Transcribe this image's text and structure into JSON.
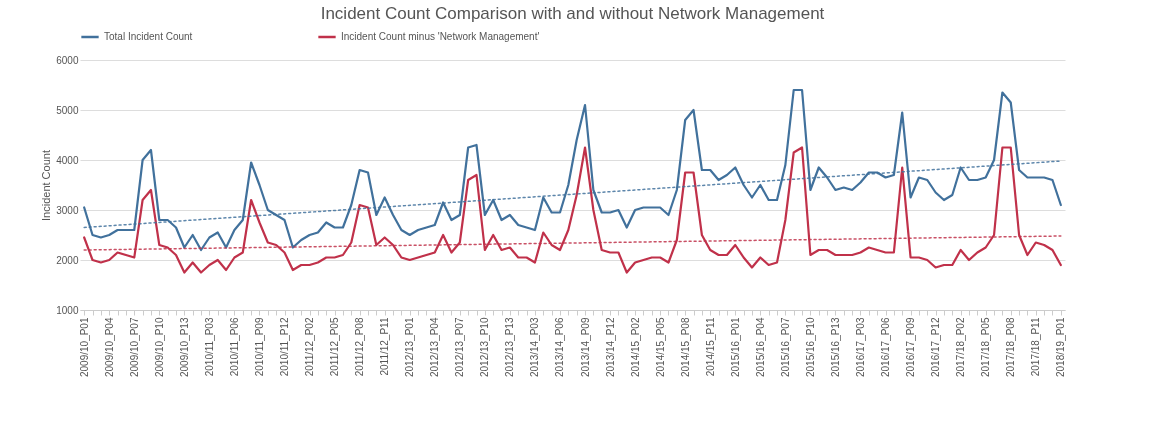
{
  "chart_data": {
    "type": "line",
    "title": "Incident Count Comparison with and without Network Management",
    "ylabel": "Incident Count",
    "categories": [
      "2009/10_P01",
      null,
      null,
      "2009/10_P04",
      null,
      null,
      "2009/10_P07",
      null,
      null,
      "2009/10_P10",
      null,
      null,
      "2009/10_P13",
      null,
      null,
      "2010/11_P03",
      null,
      null,
      "2010/11_P06",
      null,
      null,
      "2010/11_P09",
      null,
      null,
      "2010/11_P12",
      null,
      null,
      "2011/12_P02",
      null,
      null,
      "2011/12_P05",
      null,
      null,
      "2011/12_P08",
      null,
      null,
      "2011/12_P11",
      null,
      null,
      "2012/13_P01",
      null,
      null,
      "2012/13_P04",
      null,
      null,
      "2012/13_P07",
      null,
      null,
      "2012/13_P10",
      null,
      null,
      "2012/13_P13",
      null,
      null,
      "2013/14_P03",
      null,
      null,
      "2013/14_P06",
      null,
      null,
      "2013/14_P09",
      null,
      null,
      "2013/14_P12",
      null,
      null,
      "2014/15_P02",
      null,
      null,
      "2014/15_P05",
      null,
      null,
      "2014/15_P08",
      null,
      null,
      "2014/15_P11",
      null,
      null,
      "2015/16_P01",
      null,
      null,
      "2015/16_P04",
      null,
      null,
      "2015/16_P07",
      null,
      null,
      "2015/16_P10",
      null,
      null,
      "2015/16_P13",
      null,
      null,
      "2016/17_P03",
      null,
      null,
      "2016/17_P06",
      null,
      null,
      "2016/17_P09",
      null,
      null,
      "2016/17_P12",
      null,
      null,
      "2017/18_P02",
      null,
      null,
      "2017/18_P05",
      null,
      null,
      "2017/18_P08",
      null,
      null,
      "2017/18_P11",
      null,
      null,
      "2018/19_P01"
    ],
    "series": [
      {
        "name": "Total Incident Count",
        "color": "#41719c",
        "values": [
          3050,
          2500,
          2450,
          2500,
          2600,
          2600,
          2600,
          4000,
          4200,
          2800,
          2800,
          2650,
          2250,
          2500,
          2200,
          2450,
          2550,
          2250,
          2600,
          2800,
          3950,
          3500,
          3000,
          2900,
          2800,
          2250,
          2400,
          2500,
          2550,
          2750,
          2650,
          2650,
          3100,
          3800,
          3750,
          2900,
          3250,
          2900,
          2600,
          2500,
          2600,
          2650,
          2700,
          3150,
          2800,
          2900,
          4250,
          4300,
          2900,
          3200,
          2800,
          2900,
          2700,
          2650,
          2600,
          3250,
          2950,
          2950,
          3500,
          4400,
          5100,
          3400,
          2950,
          2950,
          3000,
          2650,
          3000,
          3050,
          3050,
          3050,
          2900,
          3400,
          4800,
          5000,
          3800,
          3800,
          3600,
          3700,
          3850,
          3500,
          3250,
          3500,
          3200,
          3200,
          3900,
          5400,
          5400,
          3400,
          3850,
          3650,
          3400,
          3450,
          3400,
          3550,
          3750,
          3750,
          3650,
          3700,
          4950,
          3250,
          3650,
          3600,
          3350,
          3200,
          3300,
          3850,
          3600,
          3600,
          3650,
          4000,
          5350,
          5150,
          3800,
          3650,
          3650,
          3650,
          3600,
          3100
        ]
      },
      {
        "name": "Incident Count minus 'Network Management'",
        "color": "#c0314a",
        "values": [
          2450,
          2000,
          1950,
          2000,
          2150,
          2100,
          2050,
          3200,
          3400,
          2300,
          2250,
          2100,
          1750,
          1950,
          1750,
          1900,
          2000,
          1800,
          2050,
          2150,
          3200,
          2750,
          2350,
          2300,
          2150,
          1800,
          1900,
          1900,
          1950,
          2050,
          2050,
          2100,
          2350,
          3100,
          3050,
          2300,
          2450,
          2300,
          2050,
          2000,
          2050,
          2100,
          2150,
          2500,
          2150,
          2350,
          3600,
          3700,
          2200,
          2500,
          2200,
          2250,
          2050,
          2050,
          1950,
          2550,
          2300,
          2200,
          2600,
          3300,
          4250,
          3000,
          2200,
          2150,
          2150,
          1750,
          1950,
          2000,
          2050,
          2050,
          1950,
          2400,
          3750,
          3750,
          2500,
          2200,
          2100,
          2100,
          2300,
          2050,
          1850,
          2050,
          1900,
          1950,
          2800,
          4150,
          4250,
          2100,
          2200,
          2200,
          2100,
          2100,
          2100,
          2150,
          2250,
          2200,
          2150,
          2150,
          3850,
          2050,
          2050,
          2000,
          1850,
          1900,
          1900,
          2200,
          2000,
          2150,
          2250,
          2500,
          4250,
          4250,
          2500,
          2100,
          2350,
          2300,
          2200,
          1900
        ]
      },
      {
        "type": "line",
        "color": "#41719c",
        "line_style": "dotted",
        "x": [
          "2009/10_P01",
          "2018/19_P01"
        ],
        "values": [
          2650,
          3980
        ]
      },
      {
        "type": "line",
        "color": "#c0314a",
        "line_style": "dotted",
        "x": [
          "2009/10_P01",
          "2018/19_P01"
        ],
        "values": [
          2200,
          2480
        ]
      }
    ],
    "ylim": [
      1000,
      6000
    ],
    "yticks": [
      1000,
      2000,
      3000,
      4000,
      5000,
      6000
    ],
    "grid": "y",
    "legend": "top",
    "line_style": "solid",
    "marker": "none"
  }
}
